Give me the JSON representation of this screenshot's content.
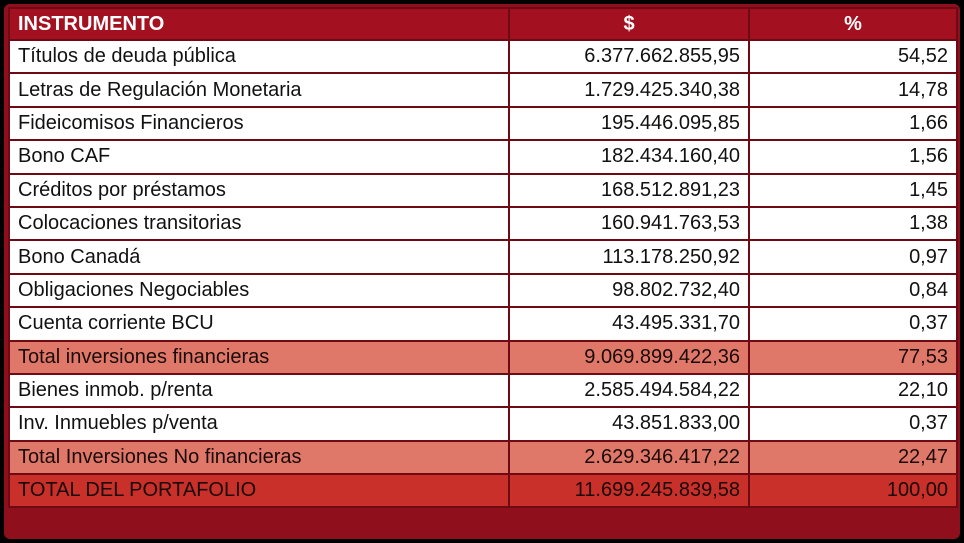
{
  "table": {
    "headers": {
      "instrument": "INSTRUMENTO",
      "amount": "$",
      "percent": "%"
    },
    "rows": [
      {
        "instrument": "Títulos de deuda pública",
        "amount": "6.377.662.855,95",
        "percent": "54,52"
      },
      {
        "instrument": "Letras de Regulación Monetaria",
        "amount": "1.729.425.340,38",
        "percent": "14,78"
      },
      {
        "instrument": "Fideicomisos Financieros",
        "amount": "195.446.095,85",
        "percent": "1,66"
      },
      {
        "instrument": "Bono CAF",
        "amount": "182.434.160,40",
        "percent": "1,56"
      },
      {
        "instrument": "Créditos por préstamos",
        "amount": "168.512.891,23",
        "percent": "1,45"
      },
      {
        "instrument": "Colocaciones transitorias",
        "amount": "160.941.763,53",
        "percent": "1,38"
      },
      {
        "instrument": "Bono Canadá",
        "amount": "113.178.250,92",
        "percent": "0,97"
      },
      {
        "instrument": "Obligaciones Negociables",
        "amount": "98.802.732,40",
        "percent": "0,84"
      },
      {
        "instrument": "Cuenta corriente BCU",
        "amount": "43.495.331,70",
        "percent": "0,37"
      },
      {
        "instrument": "Total inversiones financieras",
        "amount": "9.069.899.422,36",
        "percent": "77,53"
      },
      {
        "instrument": "Bienes inmob. p/renta",
        "amount": "2.585.494.584,22",
        "percent": "22,10"
      },
      {
        "instrument": "Inv. Inmuebles p/venta",
        "amount": "43.851.833,00",
        "percent": "0,37"
      },
      {
        "instrument": "Total Inversiones No financieras",
        "amount": "2.629.346.417,22",
        "percent": "22,47"
      },
      {
        "instrument": "TOTAL DEL PORTAFOLIO",
        "amount": "11.699.245.839,58",
        "percent": "100,00"
      }
    ]
  },
  "colors": {
    "header_bg": "#a3101f",
    "frame": "#8f0f1c",
    "subtotal_bg": "#e0786a",
    "grand_total_bg": "#c9302a"
  }
}
